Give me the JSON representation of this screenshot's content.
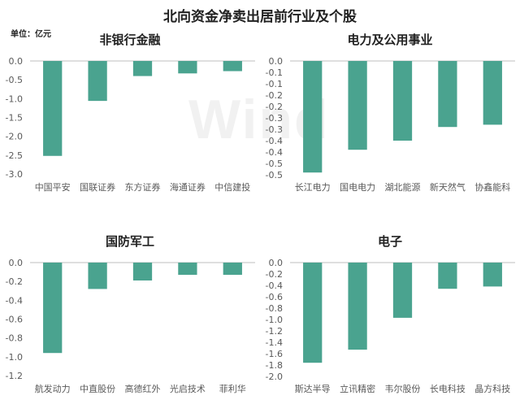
{
  "title": "北向资金净卖出居前行业及个股",
  "unit": "单位：亿元",
  "watermark": "Wind",
  "colors": {
    "bar": "#4aa38f",
    "axis": "#bfbfbf",
    "text": "#595959"
  },
  "chart_data": [
    {
      "type": "bar",
      "title": "非银行金融",
      "categories": [
        "中国平安",
        "国联证券",
        "东方证券",
        "海通证券",
        "中信建投"
      ],
      "values": [
        -2.52,
        -1.06,
        -0.4,
        -0.33,
        -0.27
      ],
      "ylim": [
        -3.0,
        0.0
      ],
      "yticks": [
        0.0,
        -0.5,
        -1.0,
        -1.5,
        -2.0,
        -2.5,
        -3.0
      ],
      "tick_decimals": 1
    },
    {
      "type": "bar",
      "title": "电力及公用事业",
      "categories": [
        "长江电力",
        "国电电力",
        "湖北能源",
        "新天然气",
        "协鑫能科"
      ],
      "values": [
        -0.49,
        -0.39,
        -0.35,
        -0.29,
        -0.28
      ],
      "ylim": [
        -0.5,
        0.0
      ],
      "yticks": [
        0.0,
        -0.05,
        -0.1,
        -0.15,
        -0.2,
        -0.25,
        -0.3,
        -0.35,
        -0.4,
        -0.45,
        -0.5
      ],
      "ytick_labels": [
        "0.0",
        "-0.1",
        "-0.1",
        "-0.2",
        "-0.2",
        "-0.3",
        "-0.3",
        "-0.4",
        "-0.4",
        "-0.5",
        "-0.5"
      ],
      "tick_decimals": 1
    },
    {
      "type": "bar",
      "title": "国防军工",
      "categories": [
        "航发动力",
        "中直股份",
        "高德红外",
        "光启技术",
        "菲利华"
      ],
      "values": [
        -0.96,
        -0.28,
        -0.19,
        -0.13,
        -0.13
      ],
      "ylim": [
        -1.2,
        0.0
      ],
      "yticks": [
        0.0,
        -0.2,
        -0.4,
        -0.6,
        -0.8,
        -1.0,
        -1.2
      ],
      "tick_decimals": 1
    },
    {
      "type": "bar",
      "title": "电子",
      "categories": [
        "斯达半导",
        "立讯精密",
        "韦尔股份",
        "长电科技",
        "晶方科技"
      ],
      "values": [
        -1.76,
        -1.53,
        -0.97,
        -0.46,
        -0.42
      ],
      "ylim": [
        -2.0,
        0.0
      ],
      "yticks": [
        0.0,
        -0.2,
        -0.4,
        -0.6,
        -0.8,
        -1.0,
        -1.2,
        -1.4,
        -1.6,
        -1.8,
        -2.0
      ],
      "tick_decimals": 1
    }
  ]
}
